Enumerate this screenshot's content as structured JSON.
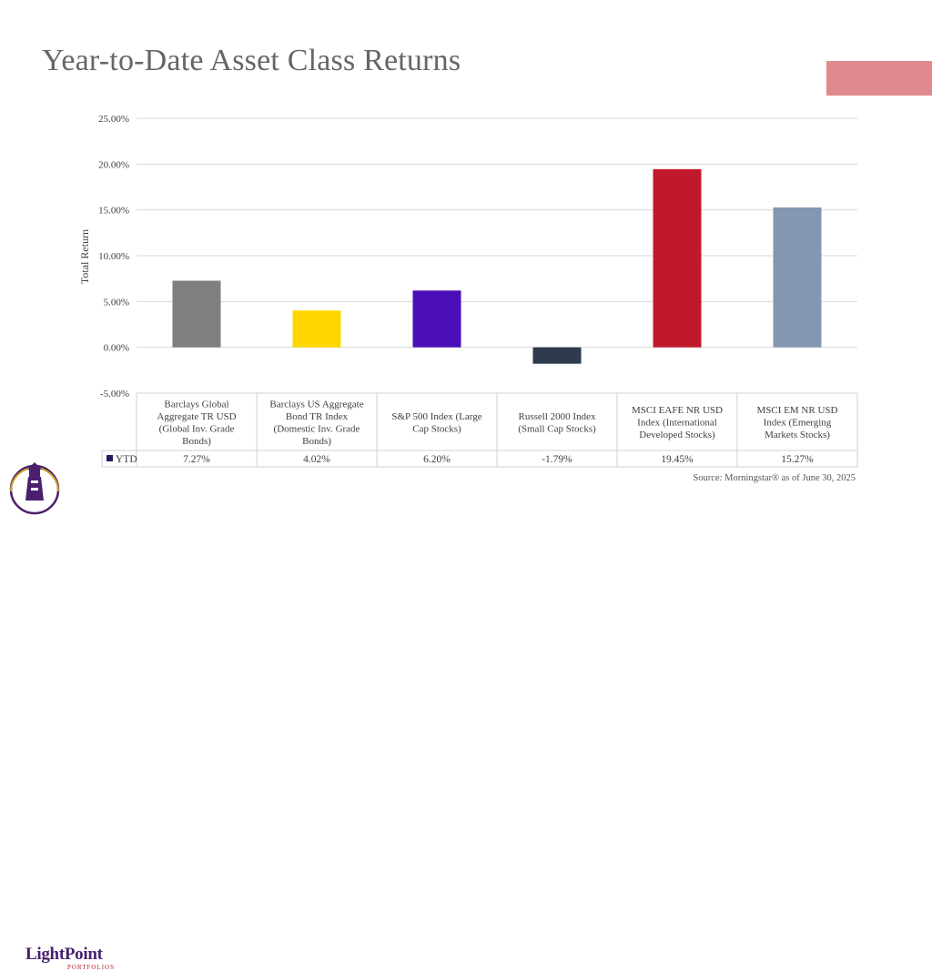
{
  "title": "Year-to-Date Asset Class Returns",
  "colors": {
    "accent": "#e08a8f",
    "title": "#666666"
  },
  "chart_data": {
    "type": "bar",
    "ylabel": "Total Return",
    "ylim": [
      -5,
      25
    ],
    "yticks": [
      "25.00%",
      "20.00%",
      "15.00%",
      "10.00%",
      "5.00%",
      "0.00%",
      "-5.00%"
    ],
    "ytick_values": [
      25,
      20,
      15,
      10,
      5,
      0,
      -5
    ],
    "grid": true,
    "categories": [
      [
        "Barclays Global",
        "Aggregate TR USD",
        "(Global Inv. Grade",
        "Bonds)"
      ],
      [
        "Barclays US Aggregate",
        "Bond TR Index",
        "(Domestic Inv. Grade",
        "Bonds)"
      ],
      [
        "S&P 500 Index (Large",
        "Cap Stocks)"
      ],
      [
        "Russell 2000 Index",
        "(Small Cap Stocks)"
      ],
      [
        "MSCI EAFE NR USD",
        "Index (International",
        "Developed Stocks)"
      ],
      [
        "MSCI EM NR USD",
        "Index (Emerging",
        "Markets Stocks)"
      ]
    ],
    "series": [
      {
        "name": "YTD",
        "values": [
          7.27,
          4.02,
          6.2,
          -1.79,
          19.45,
          15.27
        ],
        "labels": [
          "7.27%",
          "4.02%",
          "6.20%",
          "-1.79%",
          "19.45%",
          "15.27%"
        ]
      }
    ],
    "bar_colors": [
      "#7f7f7f",
      "#ffd700",
      "#4b0fb8",
      "#2e3b4e",
      "#c0192c",
      "#8497b0"
    ],
    "legend_marker_color": "#2a1a5e"
  },
  "source": "Source: Morningstar® as of June 30, 2025",
  "logo": {
    "name": "LightPoint",
    "sub": "PORTFOLIOS"
  }
}
